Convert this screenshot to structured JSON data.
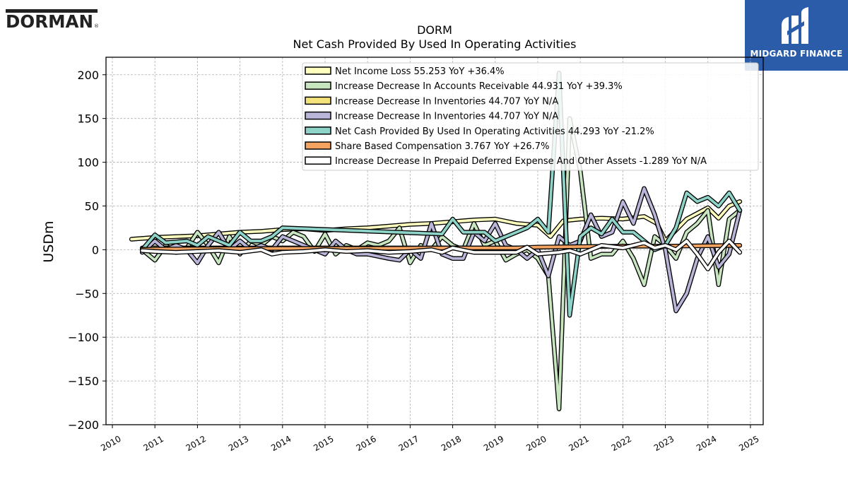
{
  "brand": {
    "left_logo_text": "DORMAN",
    "right_logo_text": "MIDGARD FINANCE"
  },
  "chart_data": {
    "type": "line",
    "title": "DORM",
    "subtitle": "Net Cash Provided By Used In Operating Activities",
    "ylabel": "USDm",
    "xlabel": "",
    "xlim": [
      2009.85,
      2025.3
    ],
    "ylim": [
      -200,
      220
    ],
    "yticks": [
      200,
      150,
      100,
      50,
      0,
      -50,
      -100,
      -150,
      -200
    ],
    "ytick_labels": [
      "200",
      "150",
      "100",
      "50",
      "0",
      "−50",
      "−100",
      "−150",
      "−200"
    ],
    "xticks": [
      2010,
      2011,
      2012,
      2013,
      2014,
      2015,
      2016,
      2017,
      2018,
      2019,
      2020,
      2021,
      2022,
      2023,
      2024,
      2025
    ],
    "xtick_labels": [
      "2010",
      "2011",
      "2012",
      "2013",
      "2014",
      "2015",
      "2016",
      "2017",
      "2018",
      "2019",
      "2020",
      "2021",
      "2022",
      "2023",
      "2024",
      "2025"
    ],
    "grid": true,
    "legend_position": "top-right",
    "series": [
      {
        "name": "Net Income Loss",
        "legend_label": "Net Income Loss  55.253 YoY +36.4%",
        "color": "#ffffbe",
        "points": [
          [
            2010.45,
            12
          ],
          [
            2011.0,
            14
          ],
          [
            2011.5,
            15
          ],
          [
            2012.0,
            16
          ],
          [
            2012.5,
            18
          ],
          [
            2013.0,
            20
          ],
          [
            2013.5,
            21
          ],
          [
            2014.0,
            23
          ],
          [
            2014.5,
            24
          ],
          [
            2015.0,
            22
          ],
          [
            2015.5,
            24
          ],
          [
            2016.0,
            25
          ],
          [
            2016.5,
            27
          ],
          [
            2017.0,
            29
          ],
          [
            2017.5,
            30
          ],
          [
            2018.0,
            32
          ],
          [
            2018.5,
            34
          ],
          [
            2019.0,
            35
          ],
          [
            2019.5,
            30
          ],
          [
            2020.0,
            28
          ],
          [
            2020.3,
            15
          ],
          [
            2020.6,
            33
          ],
          [
            2021.0,
            35
          ],
          [
            2021.5,
            36
          ],
          [
            2022.0,
            35
          ],
          [
            2022.5,
            38
          ],
          [
            2022.8,
            30
          ],
          [
            2023.0,
            10
          ],
          [
            2023.5,
            35
          ],
          [
            2024.0,
            48
          ],
          [
            2024.25,
            36
          ],
          [
            2024.5,
            50
          ],
          [
            2024.75,
            55
          ]
        ]
      },
      {
        "name": "Increase Decrease In Accounts Receivable",
        "legend_label": "Increase Decrease In Accounts Receivable  44.931 YoY +39.3%",
        "color": "#c7e6c0",
        "points": [
          [
            2010.7,
            0
          ],
          [
            2011.0,
            -12
          ],
          [
            2011.25,
            5
          ],
          [
            2011.5,
            -3
          ],
          [
            2011.75,
            2
          ],
          [
            2012.0,
            20
          ],
          [
            2012.25,
            5
          ],
          [
            2012.5,
            -15
          ],
          [
            2012.75,
            15
          ],
          [
            2013.0,
            -5
          ],
          [
            2013.25,
            10
          ],
          [
            2013.5,
            5
          ],
          [
            2013.75,
            15
          ],
          [
            2014.0,
            10
          ],
          [
            2014.25,
            20
          ],
          [
            2014.5,
            15
          ],
          [
            2014.75,
            -2
          ],
          [
            2015.0,
            18
          ],
          [
            2015.25,
            -5
          ],
          [
            2015.5,
            5
          ],
          [
            2015.75,
            0
          ],
          [
            2016.0,
            8
          ],
          [
            2016.25,
            5
          ],
          [
            2016.5,
            10
          ],
          [
            2016.75,
            25
          ],
          [
            2017.0,
            -15
          ],
          [
            2017.25,
            5
          ],
          [
            2017.5,
            0
          ],
          [
            2017.75,
            15
          ],
          [
            2018.0,
            5
          ],
          [
            2018.25,
            0
          ],
          [
            2018.5,
            30
          ],
          [
            2018.75,
            5
          ],
          [
            2019.0,
            10
          ],
          [
            2019.25,
            -12
          ],
          [
            2019.5,
            -5
          ],
          [
            2019.75,
            0
          ],
          [
            2020.0,
            -10
          ],
          [
            2020.25,
            -30
          ],
          [
            2020.5,
            -182
          ],
          [
            2020.75,
            150
          ],
          [
            2021.0,
            90
          ],
          [
            2021.25,
            -10
          ],
          [
            2021.5,
            -5
          ],
          [
            2021.75,
            -5
          ],
          [
            2022.0,
            10
          ],
          [
            2022.25,
            -10
          ],
          [
            2022.5,
            -40
          ],
          [
            2022.75,
            15
          ],
          [
            2023.0,
            5
          ],
          [
            2023.25,
            -10
          ],
          [
            2023.5,
            20
          ],
          [
            2023.75,
            30
          ],
          [
            2024.0,
            45
          ],
          [
            2024.25,
            -40
          ],
          [
            2024.5,
            35
          ],
          [
            2024.75,
            45
          ]
        ]
      },
      {
        "name": "Increase Decrease In Inventories",
        "legend_label": "Increase Decrease In Inventories  44.707 YoY N/A",
        "color": "#f4e27d",
        "points": [
          [
            2010.7,
            2
          ],
          [
            2011.0,
            2
          ],
          [
            2012.0,
            2
          ],
          [
            2013.0,
            2
          ],
          [
            2014.0,
            2
          ],
          [
            2015.0,
            2
          ],
          [
            2016.0,
            2
          ],
          [
            2017.0,
            2
          ],
          [
            2018.0,
            2
          ],
          [
            2019.0,
            2
          ],
          [
            2020.0,
            2
          ]
        ]
      },
      {
        "name": "Increase Decrease In Inventories",
        "legend_label": "Increase Decrease In Inventories  44.707 YoY N/A",
        "color": "#b9b5d8",
        "points": [
          [
            2010.7,
            -3
          ],
          [
            2011.0,
            10
          ],
          [
            2011.25,
            0
          ],
          [
            2011.5,
            5
          ],
          [
            2011.75,
            0
          ],
          [
            2012.0,
            -15
          ],
          [
            2012.25,
            5
          ],
          [
            2012.5,
            20
          ],
          [
            2012.75,
            0
          ],
          [
            2013.0,
            10
          ],
          [
            2013.25,
            0
          ],
          [
            2013.5,
            5
          ],
          [
            2013.75,
            0
          ],
          [
            2014.0,
            15
          ],
          [
            2014.25,
            10
          ],
          [
            2014.5,
            5
          ],
          [
            2014.75,
            0
          ],
          [
            2015.0,
            -5
          ],
          [
            2015.25,
            10
          ],
          [
            2015.5,
            0
          ],
          [
            2015.75,
            -5
          ],
          [
            2016.0,
            -5
          ],
          [
            2016.5,
            -10
          ],
          [
            2016.75,
            -12
          ],
          [
            2017.0,
            0
          ],
          [
            2017.25,
            -10
          ],
          [
            2017.5,
            30
          ],
          [
            2017.75,
            -5
          ],
          [
            2018.0,
            -10
          ],
          [
            2018.25,
            -10
          ],
          [
            2018.5,
            20
          ],
          [
            2018.75,
            10
          ],
          [
            2019.0,
            30
          ],
          [
            2019.25,
            5
          ],
          [
            2019.5,
            0
          ],
          [
            2019.75,
            -10
          ],
          [
            2020.0,
            0
          ],
          [
            2020.25,
            -30
          ],
          [
            2020.5,
            15
          ],
          [
            2020.75,
            5
          ],
          [
            2021.0,
            10
          ],
          [
            2021.25,
            40
          ],
          [
            2021.5,
            15
          ],
          [
            2021.75,
            20
          ],
          [
            2022.0,
            55
          ],
          [
            2022.25,
            30
          ],
          [
            2022.5,
            70
          ],
          [
            2022.75,
            40
          ],
          [
            2023.0,
            0
          ],
          [
            2023.25,
            -70
          ],
          [
            2023.5,
            -50
          ],
          [
            2023.75,
            -10
          ],
          [
            2024.0,
            15
          ],
          [
            2024.25,
            -20
          ],
          [
            2024.5,
            -5
          ],
          [
            2024.75,
            45
          ]
        ]
      },
      {
        "name": "Net Cash Provided By Used In Operating Activities",
        "legend_label": "Net Cash Provided By Used In Operating Activities  44.293 YoY -21.2%",
        "color": "#8dd3c7",
        "points": [
          [
            2010.7,
            0
          ],
          [
            2011.0,
            17
          ],
          [
            2011.25,
            8
          ],
          [
            2011.75,
            10
          ],
          [
            2012.0,
            5
          ],
          [
            2012.25,
            15
          ],
          [
            2012.5,
            10
          ],
          [
            2012.75,
            5
          ],
          [
            2013.0,
            20
          ],
          [
            2013.25,
            10
          ],
          [
            2013.5,
            10
          ],
          [
            2013.75,
            15
          ],
          [
            2014.0,
            25
          ],
          [
            2017.75,
            18
          ],
          [
            2018.0,
            35
          ],
          [
            2018.25,
            20
          ],
          [
            2018.5,
            20
          ],
          [
            2018.75,
            20
          ],
          [
            2019.0,
            10
          ],
          [
            2019.5,
            20
          ],
          [
            2019.75,
            25
          ],
          [
            2020.0,
            35
          ],
          [
            2020.25,
            20
          ],
          [
            2020.5,
            202
          ],
          [
            2020.75,
            -75
          ],
          [
            2021.0,
            15
          ],
          [
            2021.25,
            25
          ],
          [
            2021.5,
            18
          ],
          [
            2021.75,
            35
          ],
          [
            2022.0,
            20
          ],
          [
            2022.25,
            20
          ],
          [
            2022.5,
            10
          ],
          [
            2022.75,
            0
          ],
          [
            2023.0,
            5
          ],
          [
            2023.25,
            25
          ],
          [
            2023.5,
            65
          ],
          [
            2023.75,
            55
          ],
          [
            2024.0,
            60
          ],
          [
            2024.25,
            50
          ],
          [
            2024.5,
            65
          ],
          [
            2024.75,
            45
          ]
        ]
      },
      {
        "name": "Share Based Compensation",
        "legend_label": "Share Based Compensation  3.767 YoY +26.7%",
        "color": "#f4a460",
        "points": [
          [
            2010.7,
            0.5
          ],
          [
            2012.0,
            1
          ],
          [
            2014.0,
            1.5
          ],
          [
            2016.0,
            1.5
          ],
          [
            2018.0,
            2
          ],
          [
            2019.5,
            2
          ],
          [
            2020.0,
            3
          ],
          [
            2021.0,
            3.5
          ],
          [
            2022.0,
            4
          ],
          [
            2023.0,
            4
          ],
          [
            2024.0,
            4.5
          ],
          [
            2024.75,
            5
          ]
        ]
      },
      {
        "name": "Increase Decrease In Prepaid Deferred Expense And Other Assets",
        "legend_label": "Increase Decrease In Prepaid Deferred Expense And Other Assets  -1.289 YoY N/A",
        "color": "#ffffff",
        "points": [
          [
            2010.7,
            -1
          ],
          [
            2011.0,
            -2
          ],
          [
            2011.5,
            -3
          ],
          [
            2012.0,
            -2
          ],
          [
            2012.5,
            -1
          ],
          [
            2013.0,
            -3
          ],
          [
            2013.5,
            0
          ],
          [
            2013.75,
            -5
          ],
          [
            2014.0,
            -3
          ],
          [
            2014.5,
            -2
          ],
          [
            2015.0,
            0
          ],
          [
            2015.5,
            -2
          ],
          [
            2016.0,
            -1
          ],
          [
            2016.5,
            -3
          ],
          [
            2017.0,
            -2
          ],
          [
            2017.5,
            0
          ],
          [
            2017.75,
            -3
          ],
          [
            2018.0,
            2
          ],
          [
            2018.5,
            -3
          ],
          [
            2019.0,
            -3
          ],
          [
            2019.5,
            -3
          ],
          [
            2019.75,
            3
          ],
          [
            2020.0,
            -5
          ],
          [
            2020.5,
            -3
          ],
          [
            2020.75,
            -1
          ],
          [
            2021.0,
            -5
          ],
          [
            2021.5,
            5
          ],
          [
            2022.0,
            2
          ],
          [
            2022.5,
            8
          ],
          [
            2022.75,
            2
          ],
          [
            2023.0,
            5
          ],
          [
            2023.25,
            0
          ],
          [
            2023.5,
            10
          ],
          [
            2023.75,
            -5
          ],
          [
            2024.0,
            -22
          ],
          [
            2024.25,
            -3
          ],
          [
            2024.5,
            10
          ],
          [
            2024.75,
            -3
          ]
        ]
      }
    ]
  }
}
